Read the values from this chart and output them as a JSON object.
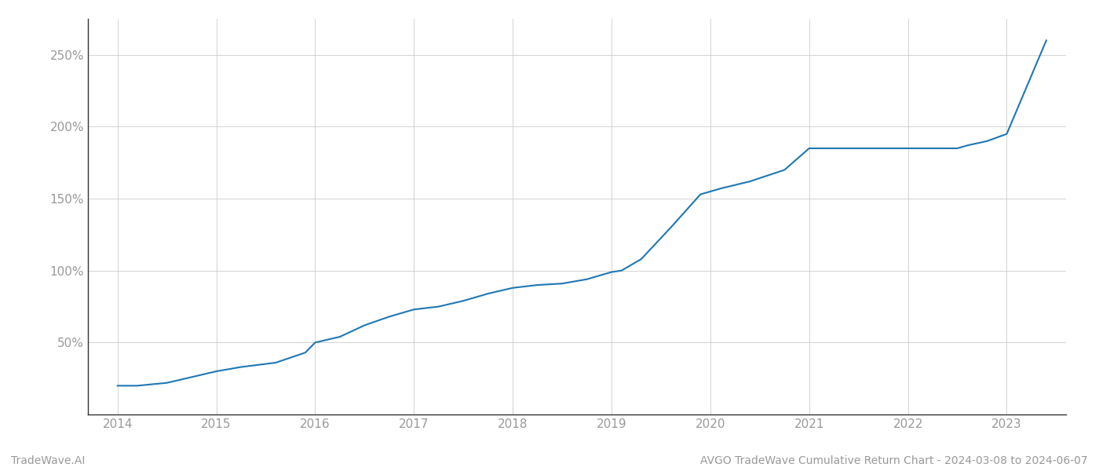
{
  "title": "AVGO TradeWave Cumulative Return Chart - 2024-03-08 to 2024-06-07",
  "watermark": "TradeWave.AI",
  "line_color": "#1f77b4",
  "background_color": "#ffffff",
  "grid_color": "#cccccc",
  "x_values": [
    2014.0,
    2014.2,
    2014.5,
    2014.75,
    2015.0,
    2015.25,
    2015.6,
    2015.9,
    2016.0,
    2016.25,
    2016.5,
    2016.75,
    2017.0,
    2017.25,
    2017.5,
    2017.75,
    2018.0,
    2018.25,
    2018.5,
    2018.75,
    2019.0,
    2019.1,
    2019.3,
    2019.6,
    2019.9,
    2020.1,
    2020.4,
    2020.75,
    2021.0,
    2021.25,
    2021.5,
    2021.75,
    2022.0,
    2022.25,
    2022.5,
    2022.6,
    2022.8,
    2023.0,
    2023.4
  ],
  "y_values": [
    20,
    20,
    22,
    26,
    30,
    33,
    36,
    43,
    50,
    54,
    62,
    68,
    73,
    75,
    79,
    84,
    88,
    90,
    91,
    94,
    99,
    100,
    108,
    130,
    153,
    157,
    162,
    170,
    185,
    185,
    185,
    185,
    185,
    185,
    185,
    187,
    190,
    195,
    260
  ],
  "xlim": [
    2013.7,
    2023.6
  ],
  "ylim": [
    0,
    275
  ],
  "yticks": [
    50,
    100,
    150,
    200,
    250
  ],
  "xticks": [
    2014,
    2015,
    2016,
    2017,
    2018,
    2019,
    2020,
    2021,
    2022,
    2023
  ],
  "line_width": 1.5,
  "tick_label_color": "#999999",
  "tick_fontsize": 11,
  "footer_fontsize": 10,
  "title_fontsize": 10,
  "spine_color": "#333333"
}
